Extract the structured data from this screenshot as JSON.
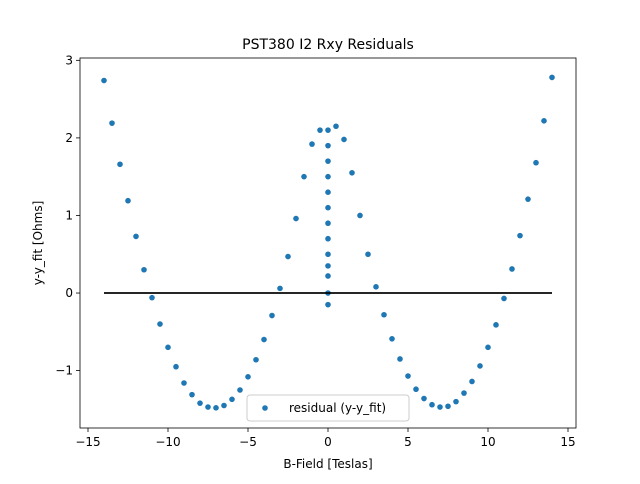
{
  "chart_data": {
    "type": "scatter",
    "title": "PST380 I2 Rxy Residuals",
    "x_label": "B-Field [Teslas]",
    "y_label": "y-y_fit [Ohms]",
    "xlim": [
      -15.5,
      15.5
    ],
    "ylim": [
      -1.74,
      3.03
    ],
    "xticks": [
      {
        "value": -15,
        "label": "−15"
      },
      {
        "value": -10,
        "label": "−10"
      },
      {
        "value": -5,
        "label": "−5"
      },
      0,
      5,
      10,
      15
    ],
    "yticks": [
      {
        "value": -1,
        "label": "−1"
      },
      0,
      1,
      2,
      3
    ],
    "legend": "lower center",
    "series": [
      {
        "name": "residual (y-y_fit)",
        "type": "scatter",
        "color": "#1f77b4",
        "x": [
          -14,
          -13.5,
          -13,
          -12.5,
          -12,
          -11.5,
          -11,
          -10.5,
          -10,
          -9.5,
          -9,
          -8.5,
          -8,
          -7.5,
          -7,
          -6.5,
          -6,
          -5.5,
          -5,
          -4.5,
          -4,
          -3.5,
          -3,
          -2.5,
          -2,
          -1.5,
          -1,
          -0.5,
          0,
          0,
          0,
          0,
          0,
          0,
          0,
          0,
          0,
          0,
          0,
          0,
          0,
          0.5,
          1,
          1.5,
          2,
          2.5,
          3,
          3.5,
          4,
          4.5,
          5,
          5.5,
          6,
          6.5,
          7,
          7.5,
          8,
          8.5,
          9,
          9.5,
          10,
          10.5,
          11,
          11.5,
          12,
          12.5,
          13,
          13.5,
          14
        ],
        "values": [
          2.74,
          2.19,
          1.66,
          1.19,
          0.73,
          0.3,
          -0.06,
          -0.4,
          -0.7,
          -0.95,
          -1.16,
          -1.31,
          -1.42,
          -1.47,
          -1.48,
          -1.45,
          -1.37,
          -1.25,
          -1.08,
          -0.86,
          -0.6,
          -0.29,
          0.06,
          0.47,
          0.96,
          1.5,
          1.92,
          2.1,
          2.1,
          1.9,
          1.7,
          1.5,
          1.3,
          1.1,
          0.9,
          0.7,
          0.5,
          0.35,
          0.22,
          0.0,
          -0.15,
          2.15,
          1.98,
          1.55,
          1.0,
          0.5,
          0.08,
          -0.28,
          -0.59,
          -0.85,
          -1.07,
          -1.24,
          -1.36,
          -1.44,
          -1.47,
          -1.46,
          -1.4,
          -1.29,
          -1.14,
          -0.94,
          -0.7,
          -0.41,
          -0.07,
          0.31,
          0.74,
          1.21,
          1.68,
          2.22,
          2.78
        ]
      },
      {
        "type": "line",
        "color": "#000000",
        "x": [
          -14,
          14
        ],
        "values": [
          0,
          0
        ]
      }
    ]
  }
}
